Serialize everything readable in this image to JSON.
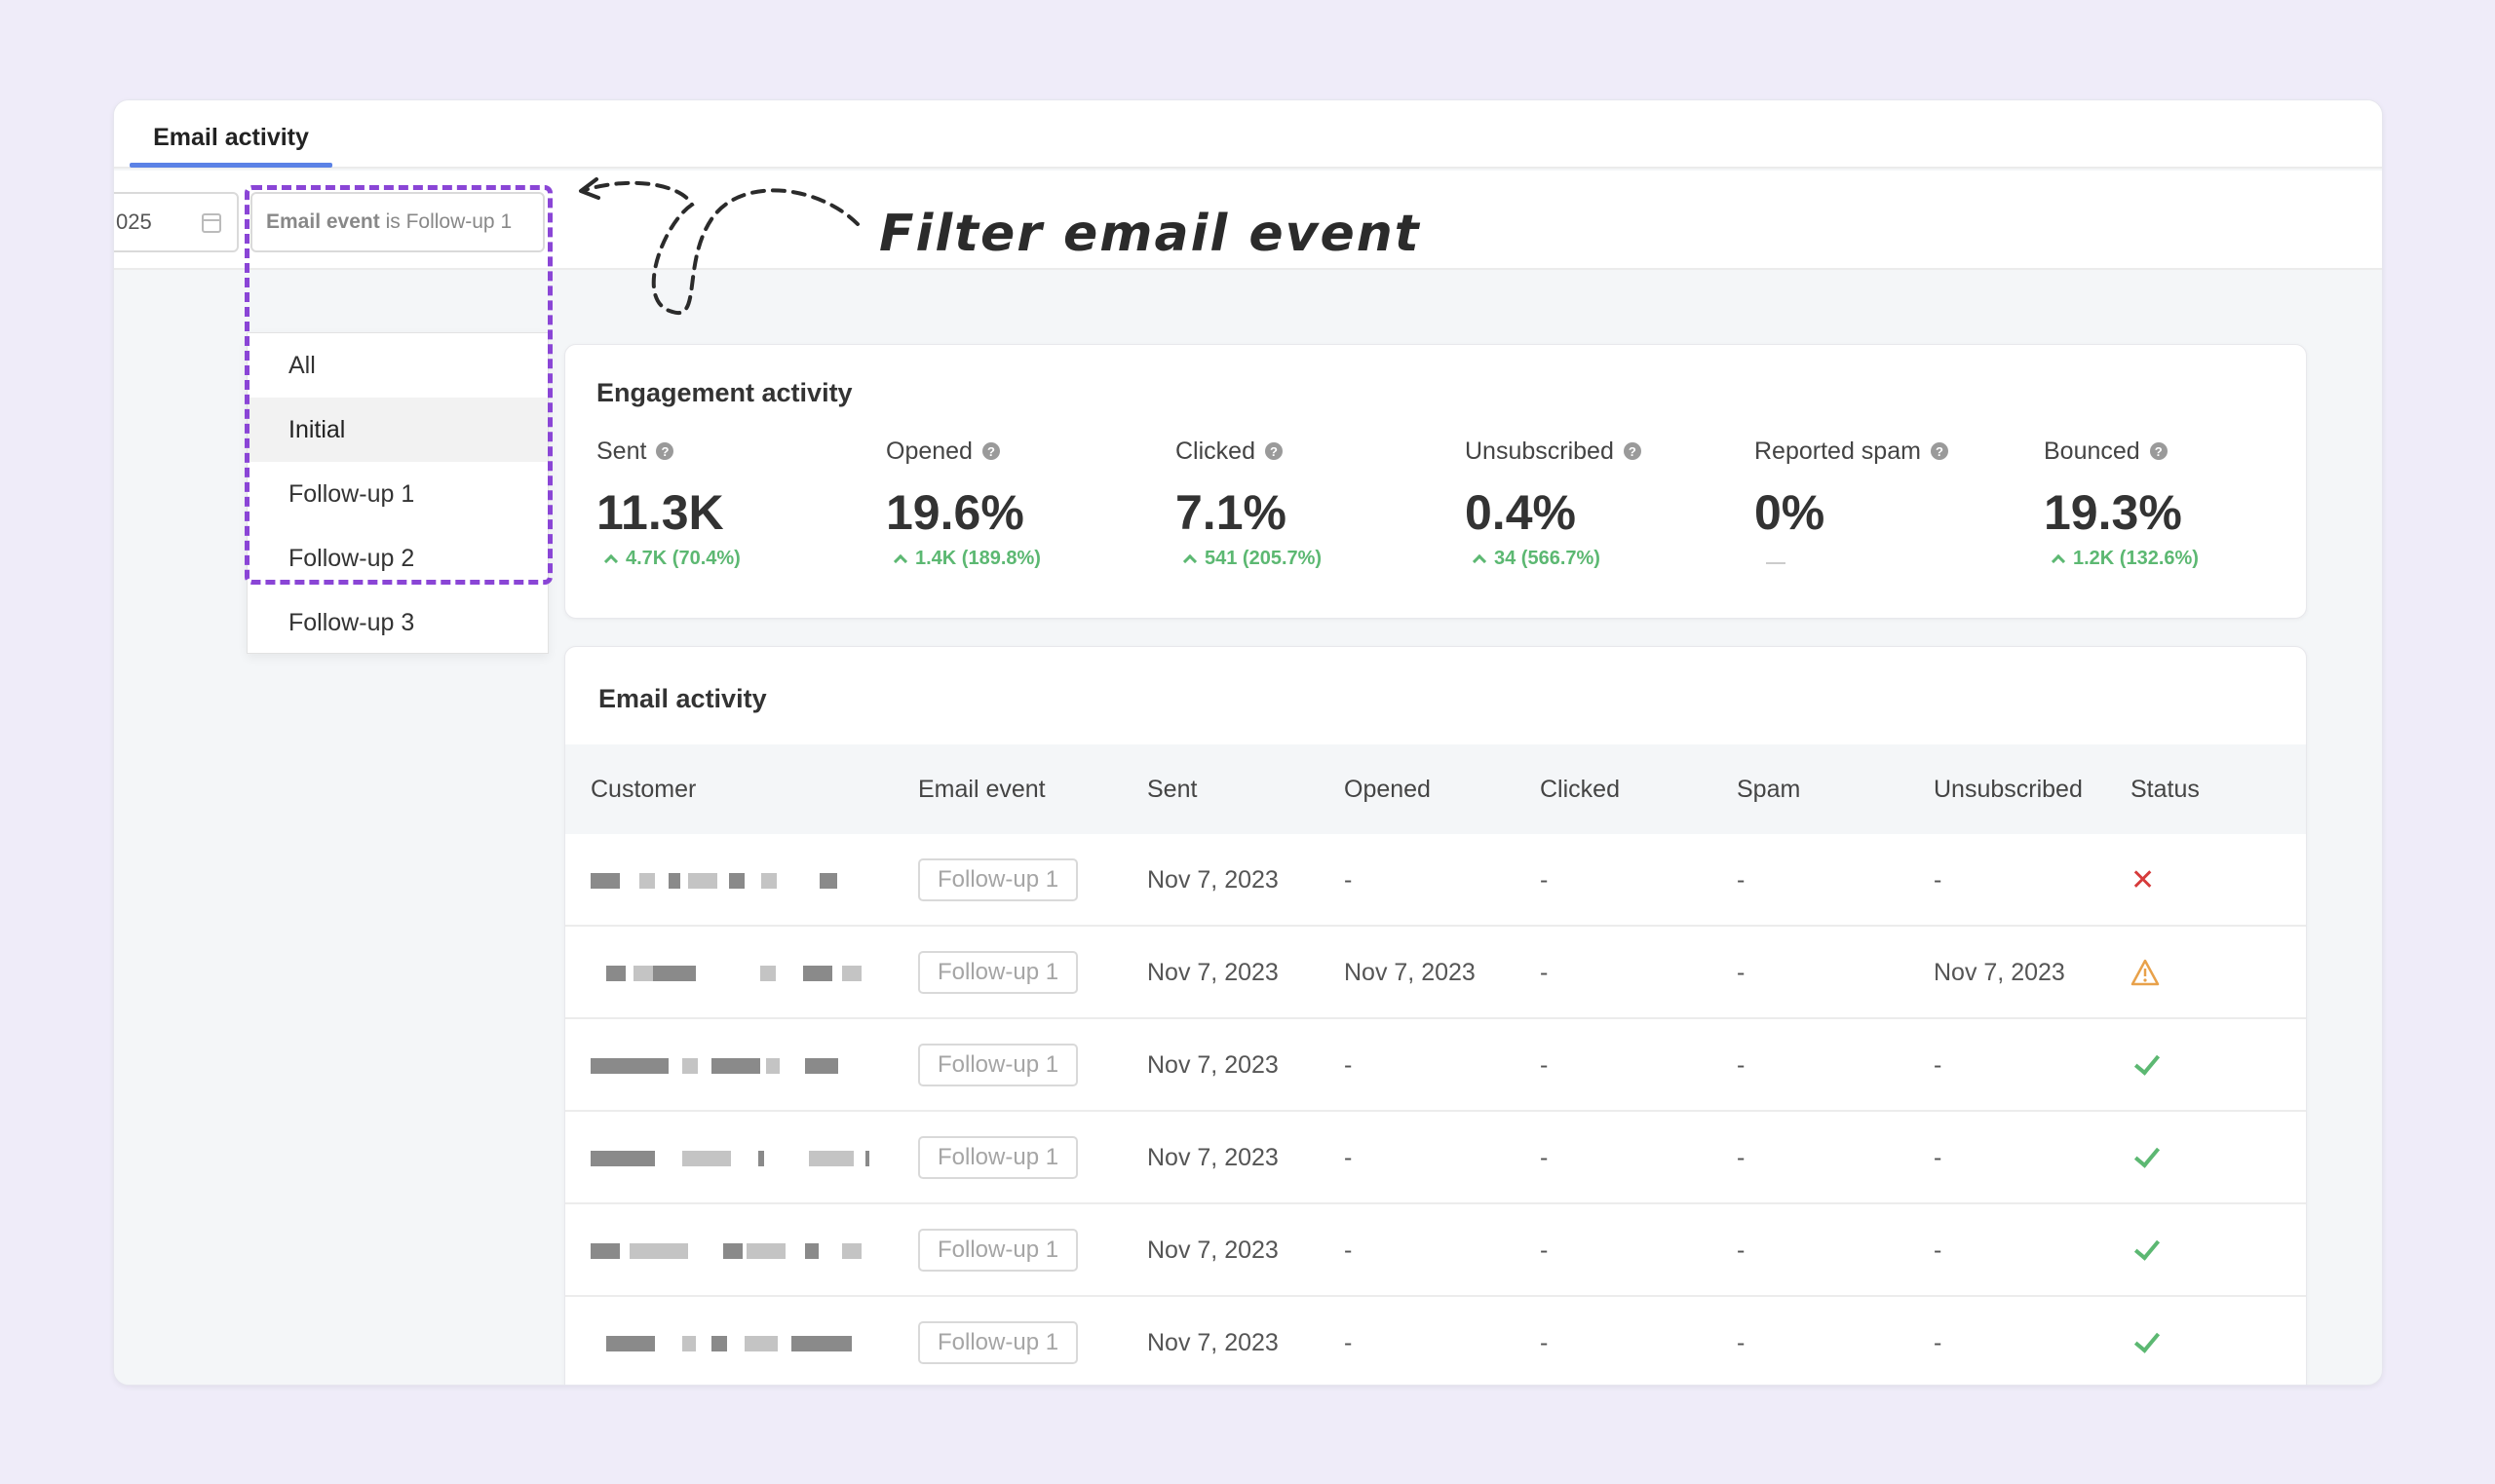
{
  "tab": {
    "label": "Email activity"
  },
  "filters": {
    "date_partial": "025",
    "event_filter_key": "Email event",
    "event_filter_op": " is ",
    "event_filter_value": "Follow-up 1"
  },
  "dropdown": {
    "options": [
      "All",
      "Initial",
      "Follow-up 1",
      "Follow-up 2",
      "Follow-up 3"
    ],
    "highlighted": "Initial"
  },
  "annotation": {
    "text": "Filter email event",
    "color": "#8a45d6"
  },
  "engagement": {
    "title": "Engagement activity",
    "metrics": [
      {
        "label": "Sent",
        "value": "11.3K",
        "delta": "4.7K (70.4%)"
      },
      {
        "label": "Opened",
        "value": "19.6%",
        "delta": "1.4K (189.8%)"
      },
      {
        "label": "Clicked",
        "value": "7.1%",
        "delta": "541 (205.7%)"
      },
      {
        "label": "Unsubscribed",
        "value": "0.4%",
        "delta": "34 (566.7%)"
      },
      {
        "label": "Reported spam",
        "value": "0%",
        "delta": ""
      },
      {
        "label": "Bounced",
        "value": "19.3%",
        "delta": "1.2K (132.6%)"
      }
    ]
  },
  "activity": {
    "title": "Email activity",
    "columns": [
      "Customer",
      "Email event",
      "Sent",
      "Opened",
      "Clicked",
      "Spam",
      "Unsubscribed",
      "Status"
    ],
    "rows": [
      {
        "event": "Follow-up 1",
        "sent": "Nov 7, 2023",
        "opened": "-",
        "clicked": "-",
        "spam": "-",
        "unsubscribed": "-",
        "status": "failed"
      },
      {
        "event": "Follow-up 1",
        "sent": "Nov 7, 2023",
        "opened": "Nov 7, 2023",
        "clicked": "-",
        "spam": "-",
        "unsubscribed": "Nov 7, 2023",
        "status": "warning"
      },
      {
        "event": "Follow-up 1",
        "sent": "Nov 7, 2023",
        "opened": "-",
        "clicked": "-",
        "spam": "-",
        "unsubscribed": "-",
        "status": "delivered"
      },
      {
        "event": "Follow-up 1",
        "sent": "Nov 7, 2023",
        "opened": "-",
        "clicked": "-",
        "spam": "-",
        "unsubscribed": "-",
        "status": "delivered"
      },
      {
        "event": "Follow-up 1",
        "sent": "Nov 7, 2023",
        "opened": "-",
        "clicked": "-",
        "spam": "-",
        "unsubscribed": "-",
        "status": "delivered"
      },
      {
        "event": "Follow-up 1",
        "sent": "Nov 7, 2023",
        "opened": "-",
        "clicked": "-",
        "spam": "-",
        "unsubscribed": "-",
        "status": "delivered"
      }
    ]
  },
  "colors": {
    "accent": "#5b82e6",
    "positive": "#5cb872",
    "error": "#d63b3b",
    "warning": "#e8a14a"
  }
}
